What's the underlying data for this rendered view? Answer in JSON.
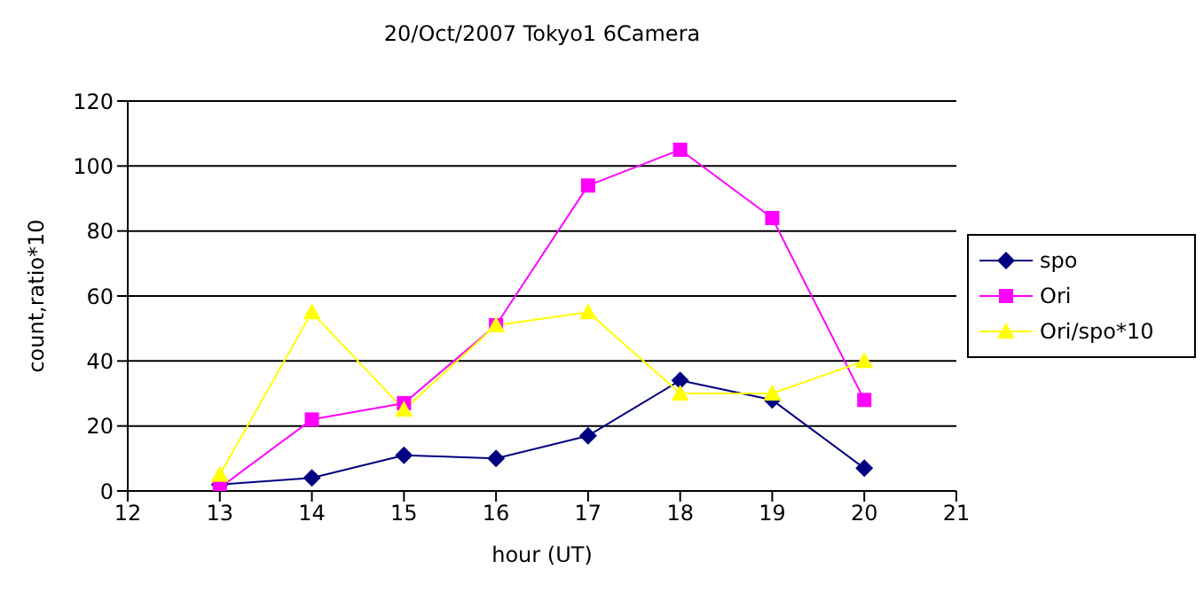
{
  "chart_data": {
    "type": "line",
    "title": "20/Oct/2007 Tokyo1 6Camera",
    "xlabel": "hour (UT)",
    "ylabel": "count,ratio*10",
    "x": [
      13,
      14,
      15,
      16,
      17,
      18,
      19,
      20
    ],
    "series": [
      {
        "name": "spo",
        "color": "#000080",
        "marker": "diamond",
        "values": [
          2,
          4,
          11,
          10,
          17,
          34,
          28,
          7
        ]
      },
      {
        "name": "Ori",
        "color": "#ff00ff",
        "marker": "square",
        "values": [
          1,
          22,
          27,
          51,
          94,
          105,
          84,
          28
        ]
      },
      {
        "name": "Ori/spo*10",
        "color": "#ffff00",
        "marker": "triangle",
        "values": [
          5,
          55,
          25,
          51,
          55,
          30,
          30,
          40
        ]
      }
    ],
    "xlim": [
      12,
      21
    ],
    "xticks": [
      12,
      13,
      14,
      15,
      16,
      17,
      18,
      19,
      20,
      21
    ],
    "ylim": [
      0,
      120
    ],
    "yticks": [
      0,
      20,
      40,
      60,
      80,
      100,
      120
    ],
    "grid": "y",
    "legend": "right"
  }
}
